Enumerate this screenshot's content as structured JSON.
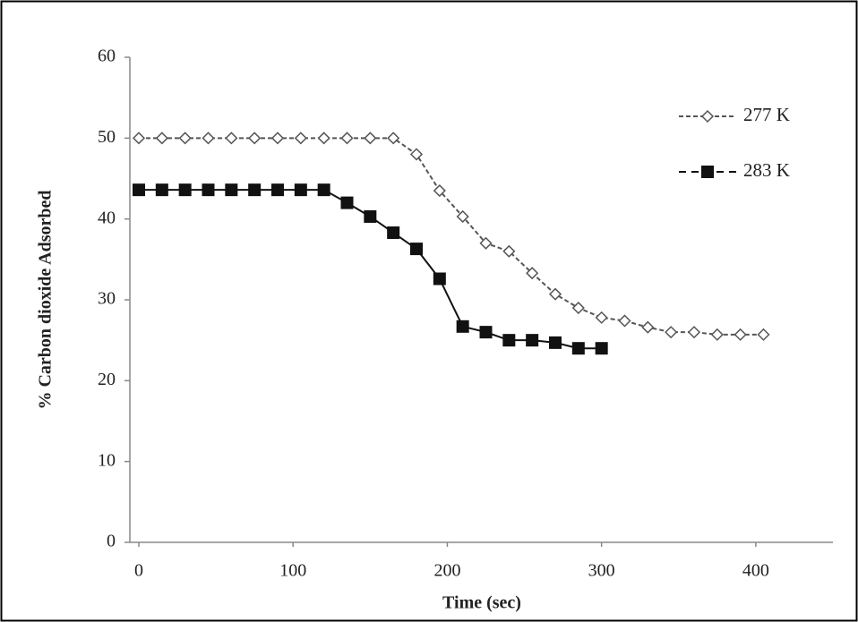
{
  "chart_data": {
    "type": "line",
    "x_label": "Time (sec)",
    "y_label": "% Carbon dioxide Adsorbed",
    "x": [
      0,
      15,
      30,
      45,
      60,
      75,
      90,
      105,
      120,
      135,
      150,
      165,
      180,
      195,
      210,
      225,
      240,
      255,
      270,
      285,
      300,
      315,
      330,
      345,
      360,
      375,
      390,
      405
    ],
    "series": [
      {
        "name": "277 K",
        "color": "#555555",
        "dashed": true,
        "marker": "diamond",
        "values": [
          50,
          50,
          50,
          50,
          50,
          50,
          50,
          50,
          50,
          50,
          50,
          50,
          48,
          43.5,
          40.3,
          37,
          36,
          33.3,
          30.7,
          29,
          27.8,
          27.4,
          26.6,
          26,
          26,
          25.7,
          25.7,
          25.7
        ]
      },
      {
        "name": "283 K",
        "color": "#111111",
        "dashed": false,
        "marker": "square",
        "values": [
          43.6,
          43.6,
          43.6,
          43.6,
          43.6,
          43.6,
          43.6,
          43.6,
          43.6,
          42,
          40.3,
          38.3,
          36.3,
          32.6,
          26.7,
          26,
          25,
          25,
          24.7,
          24,
          24,
          null,
          null,
          null,
          null,
          null,
          null,
          null
        ]
      }
    ],
    "xlim": [
      0,
      450
    ],
    "xticks": [
      0,
      100,
      200,
      300,
      400
    ],
    "ylim": [
      0,
      60
    ],
    "yticks": [
      0,
      10,
      20,
      30,
      40,
      50,
      60
    ],
    "legend": "top-right"
  }
}
